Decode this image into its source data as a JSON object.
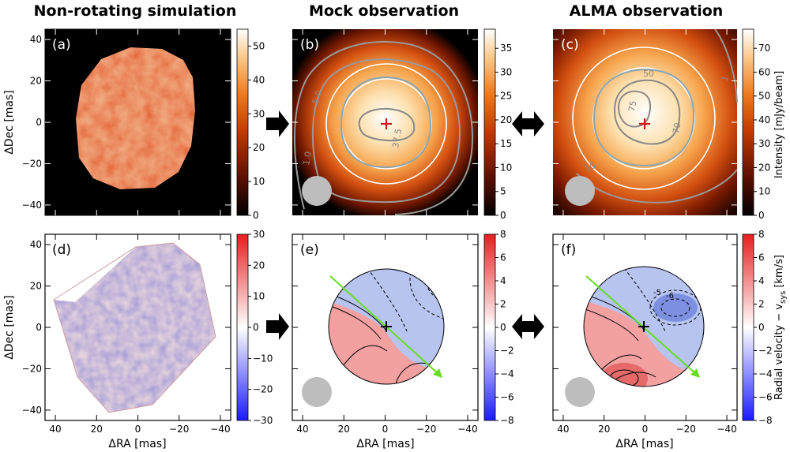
{
  "columns": [
    {
      "title": "Non-rotating simulation"
    },
    {
      "title": "Mock observation"
    },
    {
      "title": "ALMA observation"
    }
  ],
  "panels": {
    "a": {
      "label": "(a)"
    },
    "b": {
      "label": "(b)",
      "contours": [
        "5.0",
        "1.0",
        "37.5"
      ]
    },
    "c": {
      "label": "(c)",
      "contours": [
        "50",
        "75",
        "70",
        "10",
        "1"
      ]
    },
    "d": {
      "label": "(d)"
    },
    "e": {
      "label": "(e)"
    },
    "f": {
      "label": "(f)",
      "contours": [
        "-5",
        "-6"
      ]
    }
  },
  "axes": {
    "xlabel": "ΔRA [mas]",
    "ylabel": "ΔDec [mas]",
    "xticks": [
      "40",
      "20",
      "0",
      "−20",
      "−40"
    ],
    "yticks": [
      "40",
      "20",
      "0",
      "−20",
      "−40"
    ]
  },
  "colorbars": {
    "a": {
      "ticks": [
        "50",
        "40",
        "30",
        "20",
        "10",
        "0"
      ]
    },
    "b": {
      "ticks": [
        "35",
        "30",
        "25",
        "20",
        "15",
        "10",
        "5",
        "0"
      ]
    },
    "c": {
      "ticks": [
        "70",
        "60",
        "50",
        "40",
        "30",
        "20",
        "10",
        "0"
      ],
      "label": "Intensity [mJy/beam]"
    },
    "d": {
      "ticks": [
        "30",
        "20",
        "10",
        "0",
        "−10",
        "−20",
        "−30"
      ]
    },
    "e": {
      "ticks": [
        "8",
        "6",
        "4",
        "2",
        "0",
        "−2",
        "−4",
        "−6",
        "−8"
      ]
    },
    "f": {
      "ticks": [
        "8",
        "6",
        "4",
        "2",
        "0",
        "−2",
        "−4",
        "−6",
        "−8"
      ],
      "label": "Radial velocity − v",
      "label_sub": "sys",
      "label_unit": " [km/s]"
    }
  },
  "colors": {
    "hot_map": [
      "#000000",
      "#5a0f00",
      "#b33000",
      "#e8640d",
      "#f6a34b",
      "#fde1b0",
      "#ffffff"
    ],
    "diverging_map": [
      "#1a1aff",
      "#ffffff",
      "#e61e1e"
    ],
    "beam": "#bdbdbd",
    "major_axis_arrow": "#66dd22",
    "center_marker": "#cc1a1a"
  }
}
